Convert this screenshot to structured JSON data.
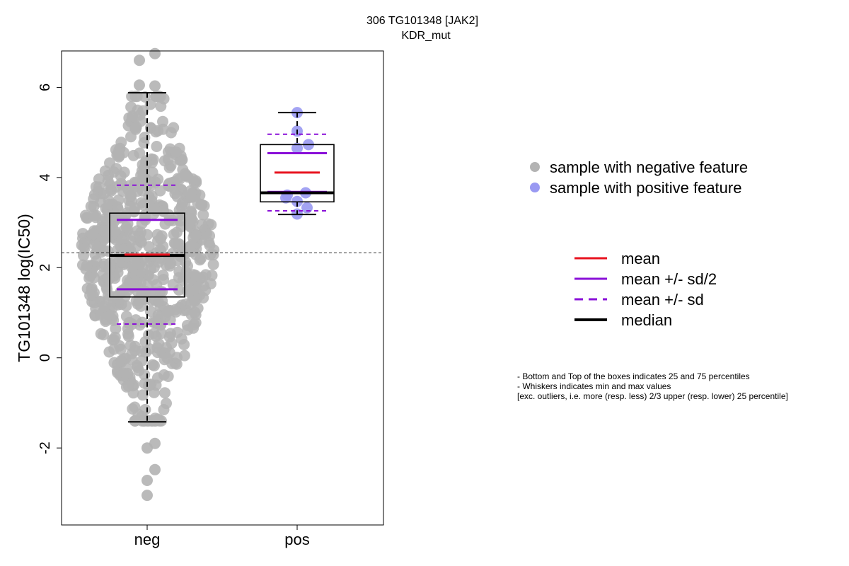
{
  "title": "306 TG101348 [JAK2]",
  "subtitle": "KDR_mut",
  "colors": {
    "neg_points": "#b3b3b3",
    "pos_points": "#9999f2",
    "mean": "#e8131f",
    "sd": "#8a10d8",
    "median": "#000000"
  },
  "legend_points": [
    {
      "label": "sample with negative feature",
      "color": "#b3b3b3"
    },
    {
      "label": "sample with positive feature",
      "color": "#9999f2"
    }
  ],
  "legend_lines": [
    {
      "label": "mean",
      "color": "#e8131f",
      "style": "solid"
    },
    {
      "label": "mean +/- sd/2",
      "color": "#8a10d8",
      "style": "solid"
    },
    {
      "label": "mean +/- sd",
      "color": "#8a10d8",
      "style": "dashed"
    },
    {
      "label": "median",
      "color": "#000000",
      "style": "thick"
    }
  ],
  "notes": [
    "- Bottom and Top of the boxes indicates 25 and 75 percentiles",
    "- Whiskers indicates min and max values",
    "[exc. outliers, i.e. more (resp. less) 2/3 upper (resp. lower) 25 percentile]"
  ],
  "chart_data": {
    "type": "box",
    "ylabel": "TG101348 log(IC50)",
    "xlabel": "",
    "categories": [
      "neg",
      "pos"
    ],
    "ylim": [
      -3.3,
      7.2
    ],
    "yticks": [
      -2,
      0,
      2,
      4,
      6
    ],
    "reference_line": 2.33,
    "grid": false,
    "legend_position": "right",
    "groups": [
      {
        "name": "neg",
        "whisker_low": -1.42,
        "q1": 1.35,
        "median": 2.27,
        "q3": 3.21,
        "whisker_high": 5.88,
        "mean": 2.29,
        "mean_minus_half_sd": 1.52,
        "mean_plus_half_sd": 3.06,
        "mean_minus_sd": 0.75,
        "mean_plus_sd": 3.83,
        "n_points": 700,
        "outliers": [
          6.6,
          6.75,
          6.05,
          6.03,
          -1.9,
          -2.0,
          -2.48,
          -2.72,
          -3.05
        ]
      },
      {
        "name": "pos",
        "whisker_low": 3.18,
        "q1": 3.46,
        "median": 3.66,
        "q3": 4.73,
        "whisker_high": 5.44,
        "mean": 4.11,
        "mean_minus_half_sd": 3.68,
        "mean_plus_half_sd": 4.54,
        "mean_minus_sd": 3.26,
        "mean_plus_sd": 4.96,
        "points": [
          5.44,
          5.03,
          4.73,
          4.65,
          3.66,
          3.61,
          3.55,
          3.47,
          3.33,
          3.19
        ]
      }
    ]
  }
}
